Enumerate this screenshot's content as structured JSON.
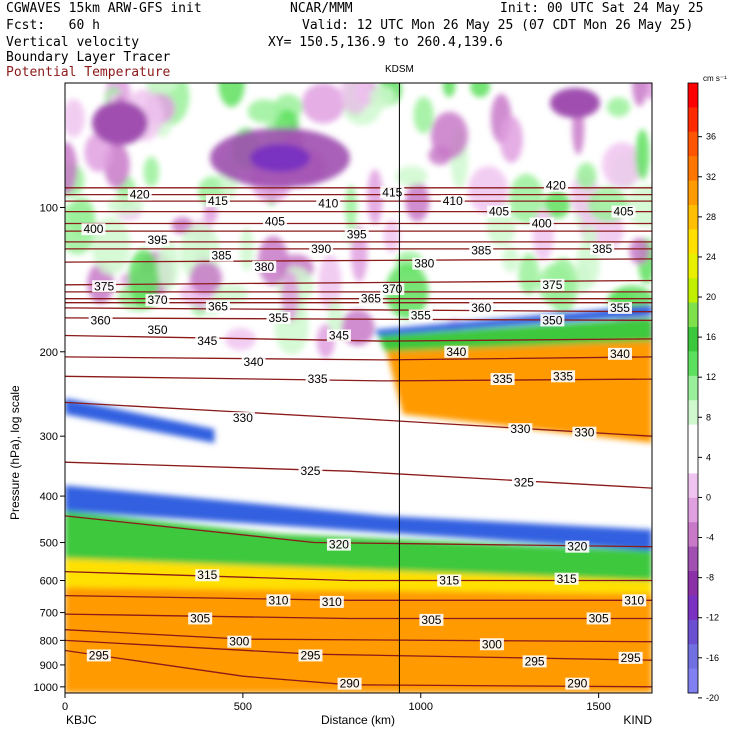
{
  "header": {
    "title": "CGWAVES 15km ARW-GFS init",
    "forecast": "Fcst:   60 h",
    "line_vv": "Vertical velocity",
    "line_blt": "Boundary Layer Tracer",
    "line_theta": "Potential Temperature",
    "org": "NCAR/MMM",
    "init": "Init: 00 UTC Sat 24 May 25",
    "valid": "Valid: 12 UTC Mon 26 May 25 (07 CDT Mon 26 May 25)",
    "xy": "XY= 150.5,136.9 to 260.4,139.6",
    "station_mark": "KDSM"
  },
  "colors": {
    "theta": "#8b1a1a",
    "accent": "#000000"
  },
  "chart_data": {
    "type": "heatmap",
    "ylabel": "Pressure (hPa), log scale",
    "xlabel": "Distance (km)",
    "x_ticks": [
      "0",
      "500",
      "1000",
      "1500"
    ],
    "x_tick_values": [
      0,
      500,
      1000,
      1500
    ],
    "xlim": [
      0,
      1650
    ],
    "y_ticks": [
      "100",
      "200",
      "300",
      "400",
      "500",
      "600",
      "700",
      "800",
      "900",
      "1000"
    ],
    "y_tick_values": [
      100,
      200,
      300,
      400,
      500,
      600,
      700,
      800,
      900,
      1000
    ],
    "ylim": [
      1030,
      55
    ],
    "y_scale": "log",
    "left_station": "KBJC",
    "right_station": "KIND",
    "marker_x": 940,
    "colorbar": {
      "unit": "cm s⁻¹",
      "labels": [
        "36",
        "32",
        "28",
        "24",
        "20",
        "16",
        "12",
        "8",
        "4",
        "0",
        "-4",
        "-8",
        "-12",
        "-16",
        "-20"
      ],
      "colors": [
        "#ff0000",
        "#ff2a00",
        "#ff5500",
        "#ff7700",
        "#ff9a00",
        "#ffbe00",
        "#ffe000",
        "#e8f000",
        "#c0f000",
        "#7ee04a",
        "#3cc83c",
        "#5de05d",
        "#9af09a",
        "#cff8cf",
        "#ffffff",
        "#ffffff",
        "#f0c4f0",
        "#e0a0e0",
        "#c87ac8",
        "#a050b0",
        "#8c30a8",
        "#7a30c0",
        "#6a50d0",
        "#7070e0",
        "#8080f0"
      ]
    },
    "theta_contours": [
      {
        "value": 290,
        "p": [
          {
            "x": 0,
            "p": 840
          },
          {
            "x": 500,
            "p": 950
          },
          {
            "x": 800,
            "p": 990
          },
          {
            "x": 1650,
            "p": 1000
          }
        ],
        "labels": [
          {
            "x": 800,
            "p": 985
          },
          {
            "x": 1440,
            "p": 985
          }
        ]
      },
      {
        "value": 295,
        "p": [
          {
            "x": 0,
            "p": 800
          },
          {
            "x": 700,
            "p": 855
          },
          {
            "x": 1650,
            "p": 880
          }
        ],
        "labels": [
          {
            "x": 95,
            "p": 860
          },
          {
            "x": 690,
            "p": 860
          },
          {
            "x": 1320,
            "p": 885
          },
          {
            "x": 1590,
            "p": 870
          }
        ]
      },
      {
        "value": 300,
        "p": [
          {
            "x": 0,
            "p": 760
          },
          {
            "x": 500,
            "p": 795
          },
          {
            "x": 1650,
            "p": 805
          }
        ],
        "labels": [
          {
            "x": 490,
            "p": 805
          },
          {
            "x": 1200,
            "p": 815
          }
        ]
      },
      {
        "value": 305,
        "p": [
          {
            "x": 0,
            "p": 705
          },
          {
            "x": 800,
            "p": 720
          },
          {
            "x": 1650,
            "p": 720
          }
        ],
        "labels": [
          {
            "x": 380,
            "p": 720
          },
          {
            "x": 1030,
            "p": 725
          },
          {
            "x": 1500,
            "p": 720
          }
        ]
      },
      {
        "value": 310,
        "p": [
          {
            "x": 0,
            "p": 645
          },
          {
            "x": 800,
            "p": 660
          },
          {
            "x": 1650,
            "p": 660
          }
        ],
        "labels": [
          {
            "x": 600,
            "p": 660
          },
          {
            "x": 750,
            "p": 665
          },
          {
            "x": 1600,
            "p": 660
          }
        ]
      },
      {
        "value": 315,
        "p": [
          {
            "x": 0,
            "p": 575
          },
          {
            "x": 800,
            "p": 600
          },
          {
            "x": 1650,
            "p": 600
          }
        ],
        "labels": [
          {
            "x": 400,
            "p": 585
          },
          {
            "x": 1080,
            "p": 600
          },
          {
            "x": 1410,
            "p": 595
          }
        ]
      },
      {
        "value": 320,
        "p": [
          {
            "x": 0,
            "p": 440
          },
          {
            "x": 700,
            "p": 500
          },
          {
            "x": 1650,
            "p": 510
          }
        ],
        "labels": [
          {
            "x": 770,
            "p": 505
          },
          {
            "x": 1440,
            "p": 510
          }
        ]
      },
      {
        "value": 325,
        "p": [
          {
            "x": 0,
            "p": 340
          },
          {
            "x": 800,
            "p": 355
          },
          {
            "x": 1650,
            "p": 385
          }
        ],
        "labels": [
          {
            "x": 690,
            "p": 355
          },
          {
            "x": 1290,
            "p": 375
          }
        ]
      },
      {
        "value": 330,
        "p": [
          {
            "x": 0,
            "p": 255
          },
          {
            "x": 800,
            "p": 275
          },
          {
            "x": 1650,
            "p": 300
          }
        ],
        "labels": [
          {
            "x": 500,
            "p": 275
          },
          {
            "x": 1280,
            "p": 290
          },
          {
            "x": 1460,
            "p": 295
          }
        ]
      },
      {
        "value": 335,
        "p": [
          {
            "x": 0,
            "p": 225
          },
          {
            "x": 900,
            "p": 230
          },
          {
            "x": 1650,
            "p": 228
          }
        ],
        "labels": [
          {
            "x": 710,
            "p": 228
          },
          {
            "x": 1230,
            "p": 228
          },
          {
            "x": 1400,
            "p": 225
          }
        ]
      },
      {
        "value": 340,
        "p": [
          {
            "x": 0,
            "p": 205
          },
          {
            "x": 900,
            "p": 208
          },
          {
            "x": 1650,
            "p": 205
          }
        ],
        "labels": [
          {
            "x": 530,
            "p": 210
          },
          {
            "x": 1100,
            "p": 200
          },
          {
            "x": 1560,
            "p": 202
          }
        ]
      },
      {
        "value": 345,
        "p": [
          {
            "x": 0,
            "p": 185
          },
          {
            "x": 900,
            "p": 190
          },
          {
            "x": 1650,
            "p": 188
          }
        ],
        "labels": [
          {
            "x": 400,
            "p": 190
          },
          {
            "x": 770,
            "p": 185
          }
        ]
      },
      {
        "value": 350,
        "p": [
          {
            "x": 0,
            "p": 170
          },
          {
            "x": 1650,
            "p": 172
          }
        ],
        "labels": [
          {
            "x": 260,
            "p": 180
          },
          {
            "x": 1370,
            "p": 172
          }
        ]
      },
      {
        "value": 355,
        "p": [
          {
            "x": 0,
            "p": 162
          },
          {
            "x": 1650,
            "p": 165
          }
        ],
        "labels": [
          {
            "x": 600,
            "p": 170
          },
          {
            "x": 1000,
            "p": 168
          },
          {
            "x": 1560,
            "p": 162
          }
        ]
      },
      {
        "value": 360,
        "p": [
          {
            "x": 0,
            "p": 158
          },
          {
            "x": 1650,
            "p": 158
          }
        ],
        "labels": [
          {
            "x": 100,
            "p": 172
          },
          {
            "x": 1170,
            "p": 162
          }
        ]
      },
      {
        "value": 365,
        "p": [
          {
            "x": 0,
            "p": 155
          },
          {
            "x": 1650,
            "p": 155
          }
        ],
        "labels": [
          {
            "x": 430,
            "p": 161
          },
          {
            "x": 860,
            "p": 155
          }
        ]
      },
      {
        "value": 370,
        "p": [
          {
            "x": 0,
            "p": 150
          },
          {
            "x": 1650,
            "p": 150
          }
        ],
        "labels": [
          {
            "x": 260,
            "p": 156
          },
          {
            "x": 920,
            "p": 148
          }
        ]
      },
      {
        "value": 375,
        "p": [
          {
            "x": 0,
            "p": 145
          },
          {
            "x": 1650,
            "p": 142
          }
        ],
        "labels": [
          {
            "x": 110,
            "p": 146
          },
          {
            "x": 1370,
            "p": 145
          }
        ]
      },
      {
        "value": 380,
        "p": [
          {
            "x": 0,
            "p": 130
          },
          {
            "x": 1650,
            "p": 128
          }
        ],
        "labels": [
          {
            "x": 560,
            "p": 133
          },
          {
            "x": 1010,
            "p": 131
          }
        ]
      },
      {
        "value": 385,
        "p": [
          {
            "x": 0,
            "p": 122
          },
          {
            "x": 1650,
            "p": 122
          }
        ],
        "labels": [
          {
            "x": 440,
            "p": 126
          },
          {
            "x": 1170,
            "p": 123
          },
          {
            "x": 1510,
            "p": 122
          }
        ]
      },
      {
        "value": 390,
        "p": [
          {
            "x": 0,
            "p": 118
          },
          {
            "x": 1650,
            "p": 118
          }
        ],
        "labels": [
          {
            "x": 720,
            "p": 122
          }
        ]
      },
      {
        "value": 395,
        "p": [
          {
            "x": 0,
            "p": 112
          },
          {
            "x": 1650,
            "p": 112
          }
        ],
        "labels": [
          {
            "x": 260,
            "p": 117
          },
          {
            "x": 820,
            "p": 114
          }
        ]
      },
      {
        "value": 400,
        "p": [
          {
            "x": 0,
            "p": 108
          },
          {
            "x": 1650,
            "p": 108
          }
        ],
        "labels": [
          {
            "x": 80,
            "p": 111
          },
          {
            "x": 1340,
            "p": 108
          }
        ]
      },
      {
        "value": 405,
        "p": [
          {
            "x": 0,
            "p": 102
          },
          {
            "x": 1650,
            "p": 102
          }
        ],
        "labels": [
          {
            "x": 590,
            "p": 107
          },
          {
            "x": 1220,
            "p": 102
          },
          {
            "x": 1570,
            "p": 102
          }
        ]
      },
      {
        "value": 410,
        "p": [
          {
            "x": 0,
            "p": 97
          },
          {
            "x": 1650,
            "p": 97
          }
        ],
        "labels": [
          {
            "x": 740,
            "p": 98
          },
          {
            "x": 1090,
            "p": 97
          }
        ]
      },
      {
        "value": 415,
        "p": [
          {
            "x": 0,
            "p": 94
          },
          {
            "x": 1650,
            "p": 94
          }
        ],
        "labels": [
          {
            "x": 430,
            "p": 97
          },
          {
            "x": 920,
            "p": 93
          }
        ]
      },
      {
        "value": 420,
        "p": [
          {
            "x": 0,
            "p": 91
          },
          {
            "x": 1650,
            "p": 91
          }
        ],
        "labels": [
          {
            "x": 210,
            "p": 94
          },
          {
            "x": 1380,
            "p": 90
          }
        ]
      }
    ]
  }
}
